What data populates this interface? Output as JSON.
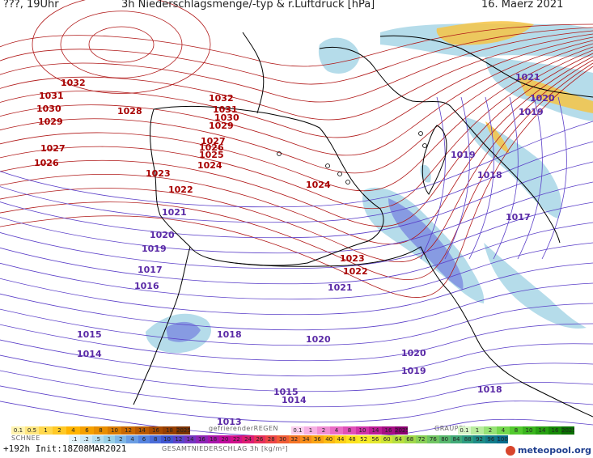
{
  "header": {
    "left": "???, 19Uhr",
    "title": "3h Niederschlagsmenge/-typ & r.Luftdruck [hPa]",
    "date": "16. Maerz 2021"
  },
  "isobar_labels": [
    {
      "text": "1032",
      "kind": "hi"
    },
    {
      "text": "1031",
      "kind": "hi"
    },
    {
      "text": "1030",
      "kind": "hi"
    },
    {
      "text": "1029",
      "kind": "hi"
    },
    {
      "text": "1027",
      "kind": "hi"
    },
    {
      "text": "1026",
      "kind": "hi"
    },
    {
      "text": "1028",
      "kind": "hi"
    },
    {
      "text": "1032",
      "kind": "hi"
    },
    {
      "text": "1031",
      "kind": "hi"
    },
    {
      "text": "1030",
      "kind": "hi"
    },
    {
      "text": "1029",
      "kind": "hi"
    },
    {
      "text": "1027",
      "kind": "hi"
    },
    {
      "text": "1026",
      "kind": "hi"
    },
    {
      "text": "1025",
      "kind": "hi"
    },
    {
      "text": "1024",
      "kind": "hi"
    },
    {
      "text": "1023",
      "kind": "hi"
    },
    {
      "text": "1022",
      "kind": "hi"
    },
    {
      "text": "1024",
      "kind": "hi"
    },
    {
      "text": "1023",
      "kind": "hi"
    },
    {
      "text": "1022",
      "kind": "hi"
    },
    {
      "text": "1021",
      "kind": "lo"
    },
    {
      "text": "1020",
      "kind": "lo"
    },
    {
      "text": "1019",
      "kind": "lo"
    },
    {
      "text": "1017",
      "kind": "lo"
    },
    {
      "text": "1016",
      "kind": "lo"
    },
    {
      "text": "1015",
      "kind": "lo"
    },
    {
      "text": "1014",
      "kind": "lo"
    },
    {
      "text": "1018",
      "kind": "lo"
    },
    {
      "text": "1021",
      "kind": "lo"
    },
    {
      "text": "1020",
      "kind": "lo"
    },
    {
      "text": "1020",
      "kind": "lo"
    },
    {
      "text": "1019",
      "kind": "lo"
    },
    {
      "text": "1018",
      "kind": "lo"
    },
    {
      "text": "1015",
      "kind": "lo"
    },
    {
      "text": "1014",
      "kind": "lo"
    },
    {
      "text": "1013",
      "kind": "lo"
    },
    {
      "text": "1019",
      "kind": "lo"
    },
    {
      "text": "1018",
      "kind": "lo"
    },
    {
      "text": "1017",
      "kind": "lo"
    },
    {
      "text": "1021",
      "kind": "lo"
    },
    {
      "text": "1020",
      "kind": "lo"
    },
    {
      "text": "1019",
      "kind": "lo"
    }
  ],
  "legend": {
    "snow_label": "SCHNEE",
    "freezing_rain_label": "gefrierenderREGEN",
    "graupel_label": "GRAUPEL",
    "total_label": "GESAMTNIEDERSCHLAG 3h [kg/m²]",
    "orange_values": [
      "0.1",
      "0.5",
      "1",
      "2",
      "4",
      "6",
      "8",
      "10",
      "12",
      "14",
      "16",
      "18",
      "2025+"
    ],
    "freezing_values": [
      "0.1",
      "1",
      "2",
      "4",
      "8",
      "10",
      "14",
      "16",
      "2025+"
    ],
    "graupel_values": [
      "0.1",
      "1",
      "2",
      "4",
      "8",
      "10",
      "14",
      "16",
      "2025+"
    ],
    "total_values": [
      ".1",
      ".2",
      ".5",
      "1",
      "2",
      "4",
      "6",
      "8",
      "10",
      "12",
      "14",
      "16",
      "18",
      "20",
      "22",
      "24",
      "26",
      "28",
      "30",
      "32",
      "34",
      "36",
      "40",
      "44",
      "48",
      "52",
      "56",
      "60",
      "64",
      "68",
      "72",
      "76",
      "80",
      "84",
      "88",
      "92",
      "96",
      "100"
    ],
    "colors": {
      "rain_light": "#a8d6e6",
      "rain_mid": "#7f8fe0",
      "snow_yellow": "#f6c445",
      "isobar_high": "#b01818",
      "isobar_low": "#5a3ec8",
      "coast": "#000000"
    }
  },
  "footer": {
    "run": "+192h Init:18Z08MAR2021",
    "brand": "meteopool.org"
  }
}
